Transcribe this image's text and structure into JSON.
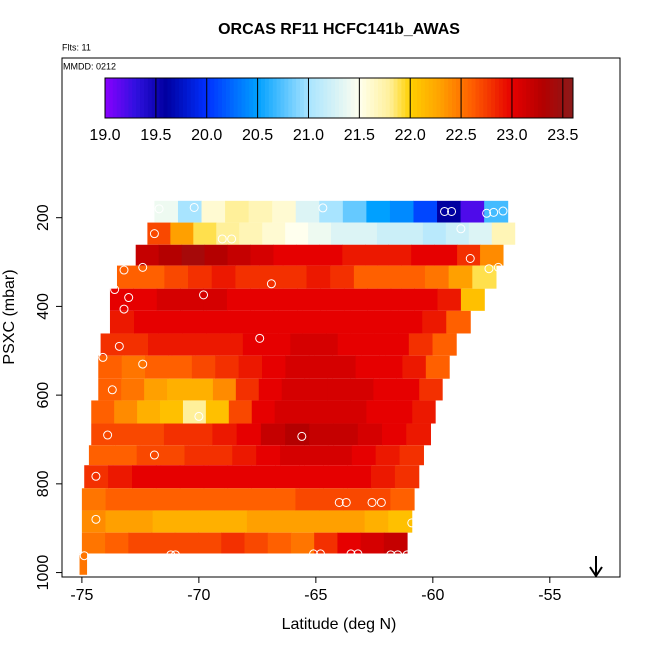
{
  "chart_data": {
    "type": "heatmap",
    "title": "ORCAS RF11 HCFC141b_AWAS",
    "annotations": [
      "Flts: 11",
      "MMDD: 0212"
    ],
    "x_label": "Latitude (deg N)",
    "y_label": "PSXC (mbar)",
    "xlim": [
      -75.85,
      -52.0
    ],
    "xticks": [
      -75,
      -70,
      -65,
      -60,
      -55
    ],
    "ylim": [
      1010,
      -160
    ],
    "yticks": [
      200,
      400,
      600,
      800,
      1000
    ],
    "colorbar": {
      "lim": [
        19,
        23.6
      ],
      "ticks": [
        {
          "value": 19,
          "label": "19.0"
        },
        19.5,
        {
          "value": 20,
          "label": "20.0"
        },
        20.5,
        {
          "value": 21,
          "label": "21.0"
        },
        21.5,
        {
          "value": 22,
          "label": "22.0"
        },
        22.5,
        {
          "value": 23,
          "label": "23.0"
        },
        23.5
      ],
      "stops": [
        19.0,
        19.3,
        19.6,
        20.0,
        20.5,
        21.0,
        21.5,
        21.8,
        22.0,
        22.3,
        22.6,
        23.0,
        23.3,
        23.6
      ],
      "colors": [
        "#8a00ff",
        "#3010e0",
        "#0000a0",
        "#0030ff",
        "#00a0ff",
        "#a8e4ff",
        "#ffffee",
        "#fff09a",
        "#ffd000",
        "#ffa000",
        "#ff6000",
        "#e60000",
        "#b40000",
        "#8b1a1a"
      ]
    },
    "bands": [
      {
        "p": [
          162,
          211
        ],
        "lat": [
          -71.9,
          -56.8
        ],
        "values": [
          21.4,
          21.0,
          21.6,
          21.8,
          21.7,
          21.6,
          21.3,
          21.0,
          20.8,
          20.5,
          20.4,
          20.1,
          19.6,
          19.2,
          20.7
        ]
      },
      {
        "p": [
          211,
          261
        ],
        "lat": [
          -72.2,
          -56.5
        ],
        "values": [
          22.7,
          22.3,
          21.9,
          21.8,
          21.7,
          21.6,
          21.5,
          21.4,
          21.3,
          21.3,
          21.2,
          21.2,
          21.1,
          21.2,
          21.3,
          21.7
        ]
      },
      {
        "p": [
          261,
          308
        ],
        "lat": [
          -72.7,
          -57.0
        ],
        "values": [
          23.2,
          23.3,
          23.4,
          23.3,
          23.2,
          23.1,
          23.0,
          23.0,
          23.0,
          22.9,
          22.9,
          22.9,
          23.0,
          23.0,
          22.8,
          22.4
        ]
      },
      {
        "p": [
          308,
          360
        ],
        "lat": [
          -73.5,
          -57.3
        ],
        "values": [
          22.6,
          22.6,
          22.7,
          22.8,
          22.9,
          22.8,
          22.8,
          22.8,
          22.9,
          22.8,
          22.6,
          22.6,
          22.6,
          22.5,
          22.3,
          21.9
        ]
      },
      {
        "p": [
          360,
          410
        ],
        "lat": [
          -73.8,
          -57.8
        ],
        "values": [
          23.0,
          23.0,
          23.1,
          23.1,
          23.1,
          23.0,
          23.0,
          23.0,
          23.0,
          23.0,
          23.0,
          23.0,
          23.0,
          23.0,
          22.9,
          22.1
        ]
      },
      {
        "p": [
          410,
          461
        ],
        "lat": [
          -73.8,
          -58.4
        ],
        "values": [
          22.9,
          23.0,
          23.0,
          23.0,
          23.0,
          23.0,
          23.0,
          23.0,
          23.0,
          23.0,
          23.0,
          23.0,
          23.0,
          22.9,
          22.6
        ]
      },
      {
        "p": [
          461,
          511
        ],
        "lat": [
          -74.2,
          -59.0
        ],
        "values": [
          22.8,
          22.8,
          22.9,
          22.9,
          22.9,
          22.9,
          23.0,
          23.0,
          23.1,
          23.1,
          23.0,
          23.0,
          23.0,
          22.8,
          22.6
        ]
      },
      {
        "p": [
          511,
          563
        ],
        "lat": [
          -74.3,
          -59.3
        ],
        "values": [
          22.6,
          22.5,
          22.6,
          22.6,
          22.7,
          22.8,
          22.9,
          23.0,
          23.1,
          23.1,
          23.1,
          23.0,
          23.0,
          22.9,
          22.6
        ]
      },
      {
        "p": [
          563,
          612
        ],
        "lat": [
          -74.3,
          -59.6
        ],
        "values": [
          22.6,
          22.5,
          22.3,
          22.2,
          22.2,
          22.4,
          22.8,
          23.0,
          23.1,
          23.1,
          23.1,
          23.1,
          23.0,
          23.0,
          22.8
        ]
      },
      {
        "p": [
          612,
          664
        ],
        "lat": [
          -74.6,
          -59.9
        ],
        "values": [
          22.6,
          22.4,
          22.2,
          22.1,
          21.8,
          22.1,
          22.7,
          23.0,
          23.1,
          23.1,
          23.1,
          23.1,
          23.0,
          23.0,
          22.9
        ]
      },
      {
        "p": [
          664,
          713
        ],
        "lat": [
          -74.6,
          -60.1
        ],
        "values": [
          22.7,
          22.7,
          22.7,
          22.8,
          22.8,
          22.9,
          23.0,
          23.2,
          23.3,
          23.2,
          23.2,
          23.1,
          23.0,
          22.9
        ]
      },
      {
        "p": [
          713,
          758
        ],
        "lat": [
          -74.7,
          -60.4
        ],
        "values": [
          22.6,
          22.6,
          22.7,
          22.7,
          22.8,
          22.8,
          22.9,
          23.0,
          23.1,
          23.1,
          23.1,
          23.0,
          22.9,
          22.8
        ]
      },
      {
        "p": [
          758,
          810
        ],
        "lat": [
          -74.9,
          -60.6
        ],
        "values": [
          22.8,
          22.9,
          23.0,
          23.0,
          23.0,
          23.0,
          23.0,
          23.0,
          23.0,
          23.0,
          23.0,
          23.0,
          22.9,
          22.8
        ]
      },
      {
        "p": [
          810,
          860
        ],
        "lat": [
          -75.0,
          -60.8
        ],
        "values": [
          22.5,
          22.6,
          22.6,
          22.6,
          22.6,
          22.6,
          22.6,
          22.6,
          22.6,
          22.7,
          22.7,
          22.7,
          22.7,
          22.6
        ]
      },
      {
        "p": [
          860,
          910
        ],
        "lat": [
          -75.0,
          -60.9
        ],
        "values": [
          22.4,
          22.3,
          22.3,
          22.2,
          22.2,
          22.2,
          22.2,
          22.3,
          22.3,
          22.3,
          22.3,
          22.3,
          22.2,
          22.1
        ]
      },
      {
        "p": [
          910,
          957
        ],
        "lat": [
          -75.0,
          -61.1
        ],
        "values": [
          22.5,
          22.6,
          22.7,
          22.7,
          22.7,
          22.7,
          22.8,
          22.7,
          22.6,
          22.5,
          22.8,
          23.0,
          23.1,
          23.2
        ]
      },
      {
        "p": [
          957,
          1005
        ],
        "lat": [
          -75.1,
          -74.8
        ],
        "values": [
          22.5
        ]
      }
    ],
    "points": {
      "x": [
        -71.7,
        -70.2,
        -64.7,
        -59.5,
        -59.2,
        -57.7,
        -57.4,
        -57.0,
        -71.9,
        -69.0,
        -68.6,
        -58.8,
        -72.4,
        -73.2,
        -66.9,
        -58.4,
        -57.6,
        -57.2,
        -73.6,
        -73.0,
        -69.8,
        -73.2,
        -73.4,
        -67.4,
        -74.1,
        -72.4,
        -73.7,
        -73.9,
        -71.9,
        -70.0,
        -65.6,
        -74.4,
        -64.0,
        -63.7,
        -62.6,
        -62.2,
        -74.4,
        -60.9,
        -75.2,
        -71.2,
        -71.0,
        -65.1,
        -64.8,
        -63.5,
        -63.2,
        -61.8,
        -61.5,
        -61.1,
        -60.8,
        -74.9
      ],
      "y": [
        180,
        177,
        178,
        186,
        186,
        190,
        188,
        185,
        236,
        248,
        248,
        225,
        312,
        318,
        349,
        292,
        315,
        312,
        362,
        380,
        374,
        406,
        490,
        472,
        515,
        530,
        588,
        690,
        735,
        648,
        693,
        783,
        842,
        842,
        842,
        842,
        880,
        888,
        952,
        960,
        960,
        958,
        958,
        958,
        958,
        960,
        960,
        960,
        958,
        962
      ],
      "color": "#ffffff"
    }
  }
}
